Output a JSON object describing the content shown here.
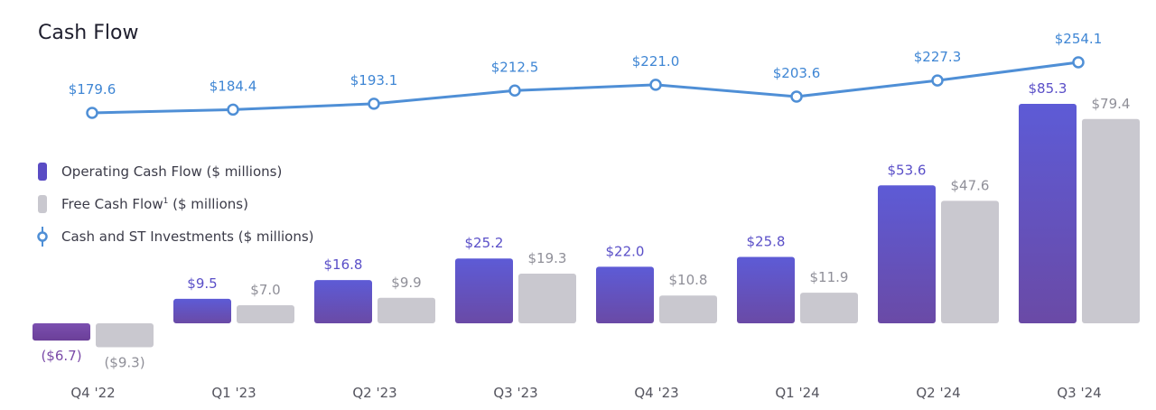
{
  "chart_data": {
    "type": "bar",
    "title": "Cash Flow",
    "categories": [
      "Q4 '22",
      "Q1 '23",
      "Q2 '23",
      "Q3 '23",
      "Q4 '23",
      "Q1 '24",
      "Q2 '24",
      "Q3 '24"
    ],
    "series": [
      {
        "name": "Operating Cash Flow ($ millions)",
        "type": "bar",
        "values": [
          -6.7,
          9.5,
          16.8,
          25.2,
          22.0,
          25.8,
          53.6,
          85.3
        ],
        "labels": [
          "($6.7)",
          "$9.5",
          "$16.8",
          "$25.2",
          "$22.0",
          "$25.8",
          "$53.6",
          "$85.3"
        ]
      },
      {
        "name": "Free Cash Flow",
        "name_suffix": "($ millions)",
        "footnote": "1",
        "type": "bar",
        "values": [
          -9.3,
          7.0,
          9.9,
          19.3,
          10.8,
          11.9,
          47.6,
          79.4
        ],
        "labels": [
          "($9.3)",
          "$7.0",
          "$9.9",
          "$19.3",
          "$10.8",
          "$11.9",
          "$47.6",
          "$79.4"
        ]
      },
      {
        "name": "Cash and ST Investments ($ millions)",
        "type": "line",
        "values": [
          179.6,
          184.4,
          193.1,
          212.5,
          221.0,
          203.6,
          227.3,
          254.1
        ],
        "labels": [
          "$179.6",
          "$184.4",
          "$193.1",
          "$212.5",
          "$221.0",
          "$203.6",
          "$227.3",
          "$254.1"
        ]
      }
    ],
    "legend_position": "left",
    "grid": false,
    "colors": {
      "operating": "#5b4fcf",
      "operating_negative": "#7a4aa8",
      "free": "#c9c8cf",
      "line": "#4f8fd6",
      "label_purple": "#5a4fc8",
      "label_gray": "#8f8f98",
      "label_blue": "#3f86d4",
      "axis_text": "#55555f"
    }
  }
}
